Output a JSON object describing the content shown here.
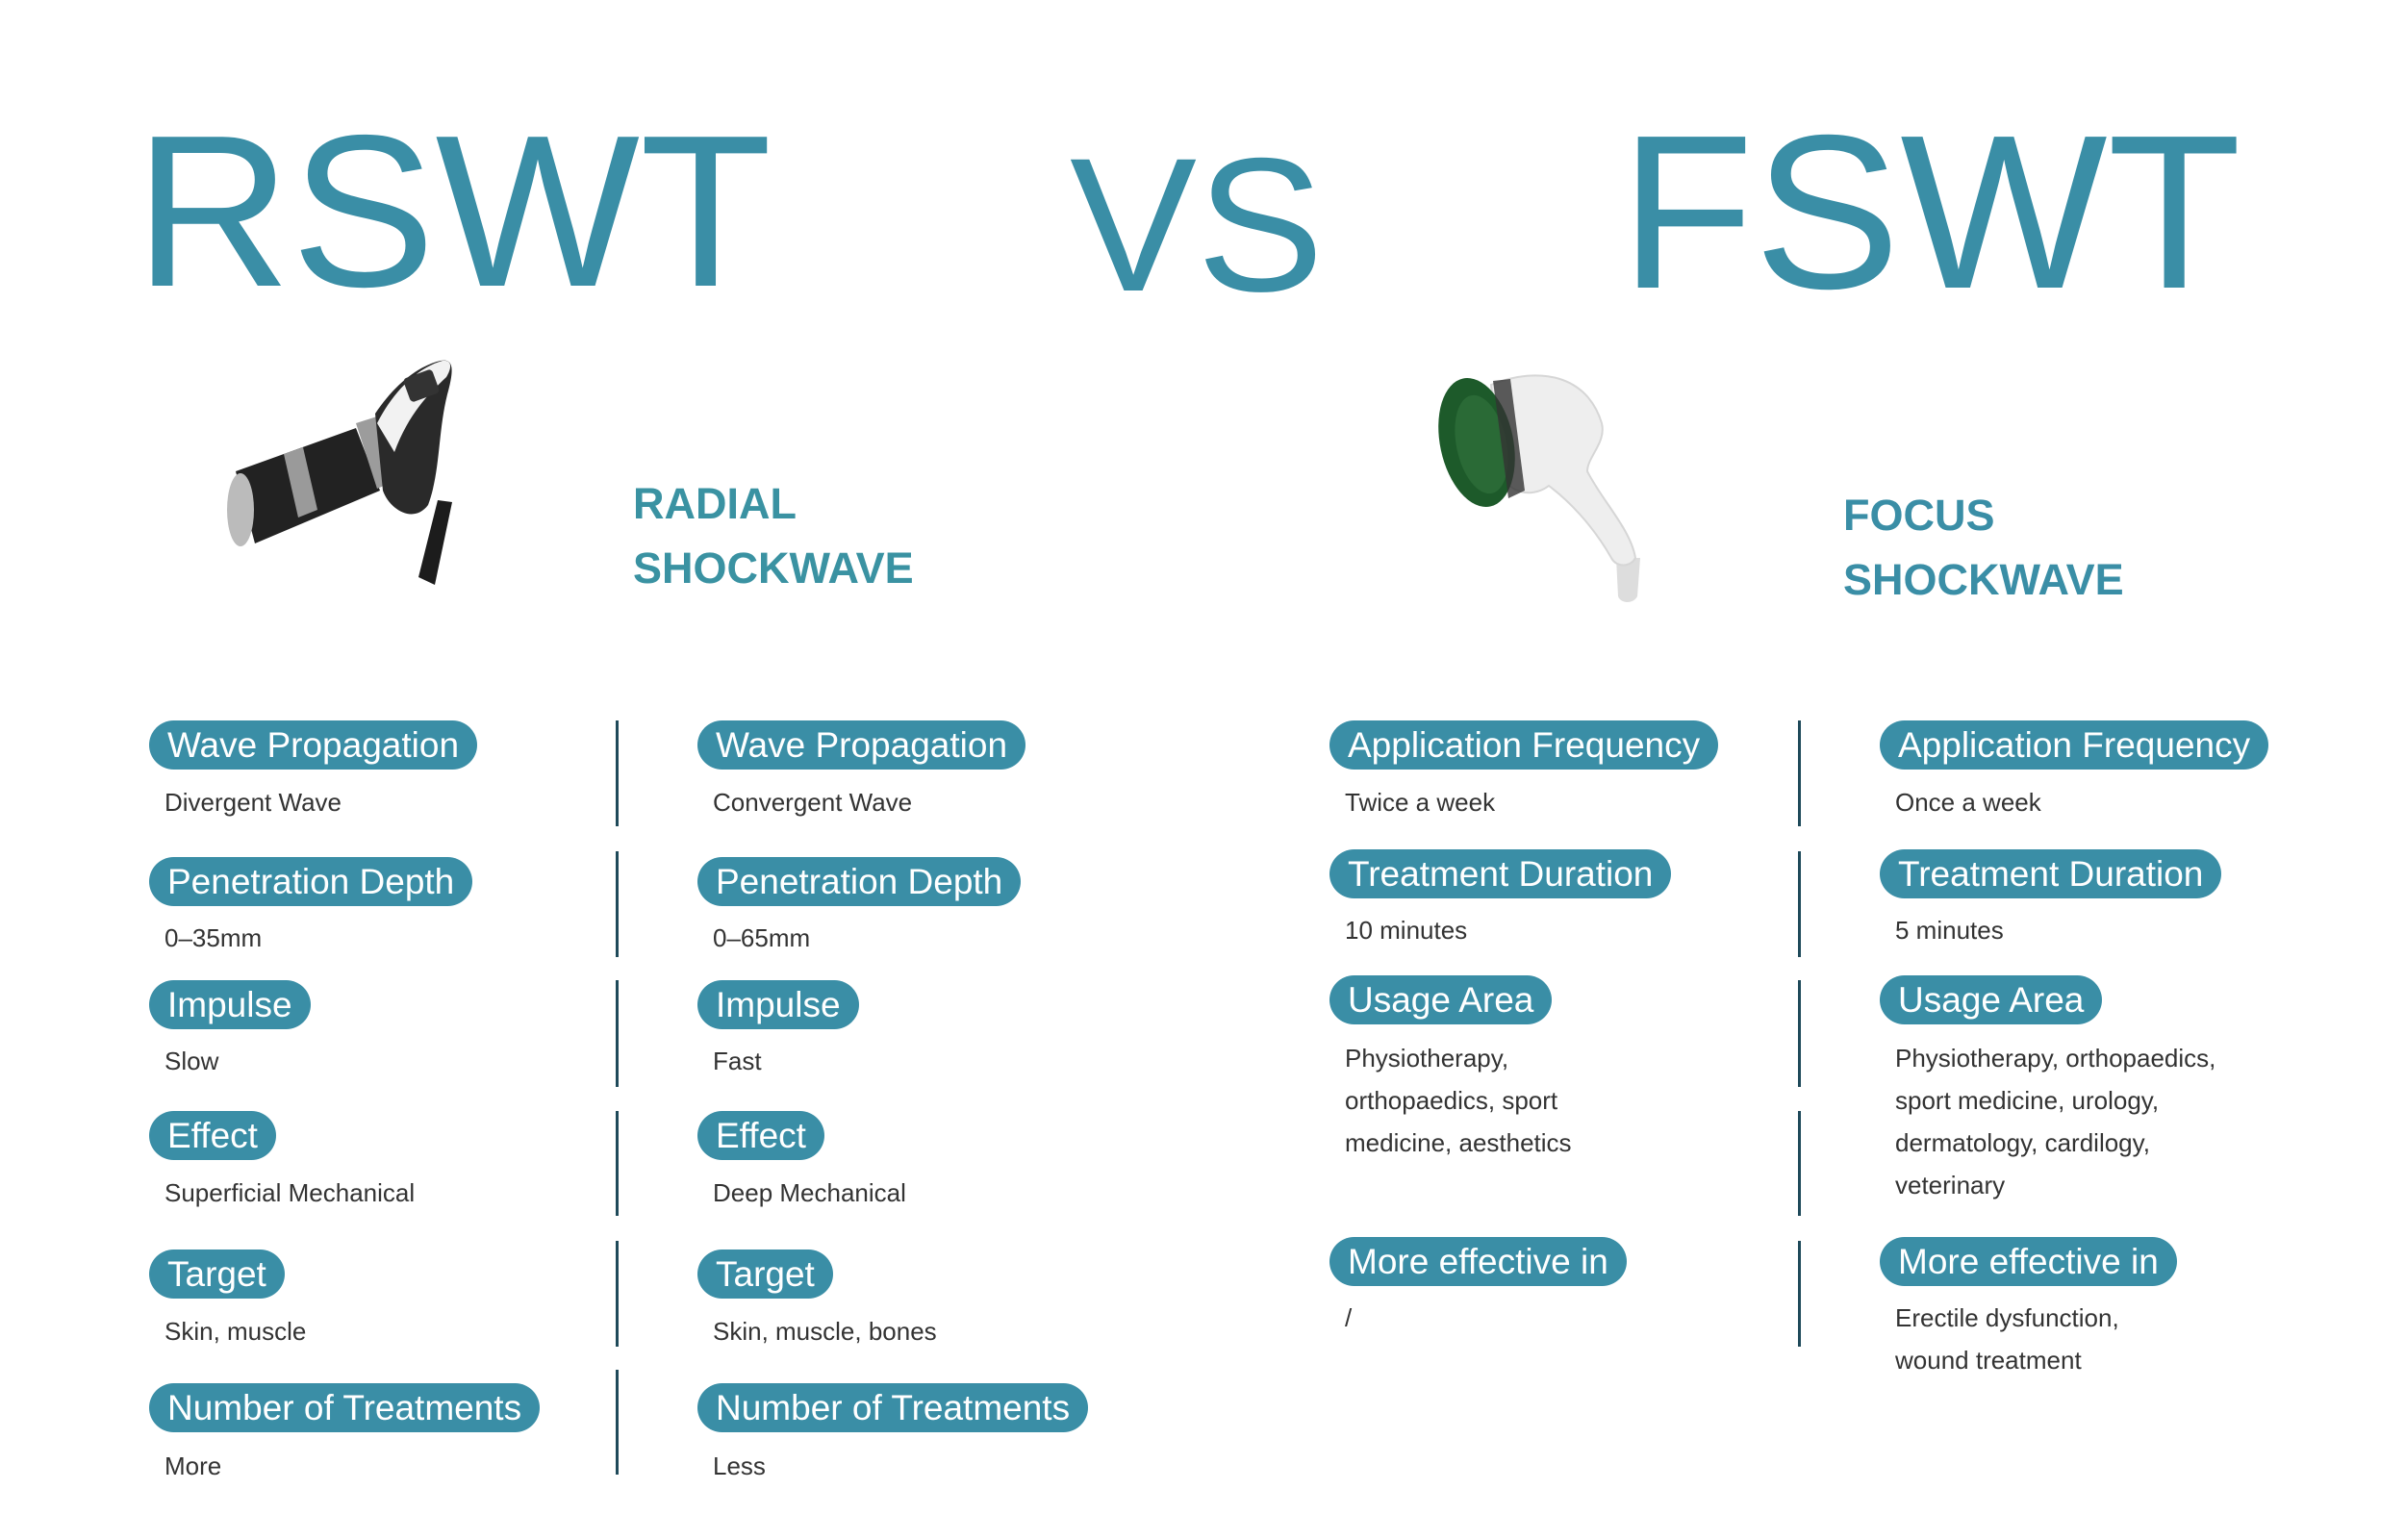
{
  "header": {
    "left_title": "RSWT",
    "vs": "VS",
    "right_title": "FSWT"
  },
  "left_product": {
    "line1": "RADIAL",
    "line2": "SHOCKWAVE",
    "image": "radial-shockwave-handpiece"
  },
  "right_product": {
    "line1": "FOCUS",
    "line2": "SHOCKWAVE",
    "image": "focus-shockwave-handpiece"
  },
  "colors": {
    "accent": "#3a8ea6",
    "divider": "#1f4a5a",
    "text": "#333333"
  },
  "rswt_vs_fswt_left": [
    {
      "label": "Wave Propagation",
      "rswt": "Divergent Wave",
      "fswt": "Convergent Wave"
    },
    {
      "label": "Penetration Depth",
      "rswt": "0–35mm",
      "fswt": "0–65mm"
    },
    {
      "label": "Impulse",
      "rswt": "Slow",
      "fswt": "Fast"
    },
    {
      "label": "Effect",
      "rswt": "Superficial Mechanical",
      "fswt": "Deep Mechanical"
    },
    {
      "label": "Target",
      "rswt": "Skin, muscle",
      "fswt": "Skin, muscle, bones"
    },
    {
      "label": "Number of Treatments",
      "rswt": "More",
      "fswt": "Less"
    }
  ],
  "rswt_vs_fswt_right": [
    {
      "label": "Application Frequency",
      "rswt": "Twice a week",
      "fswt": "Once a week"
    },
    {
      "label": "Treatment Duration",
      "rswt": "10 minutes",
      "fswt": "5 minutes"
    },
    {
      "label": "Usage Area",
      "rswt": "Physiotherapy,\northopaedics, sport\nmedicine, aesthetics",
      "fswt": "Physiotherapy, orthopaedics,\nsport medicine, urology,\ndermatology, cardilogy,\nveterinary"
    },
    {
      "label": "More effective in",
      "rswt": "/",
      "fswt": "Erectile dysfunction,\nwound treatment"
    }
  ]
}
